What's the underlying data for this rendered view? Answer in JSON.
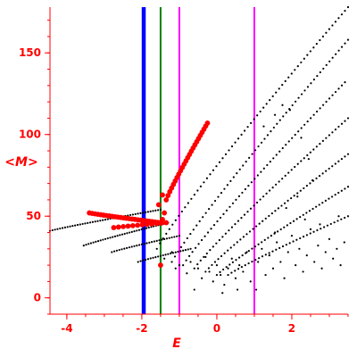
{
  "chart_data": {
    "type": "scatter",
    "xlabel": "E",
    "ylabel": "<M>",
    "xlim": [
      -4.45,
      3.5
    ],
    "ylim": [
      -10,
      178
    ],
    "x_ticks": [
      {
        "value": -4,
        "label": "-4"
      },
      {
        "value": -2,
        "label": "-2"
      },
      {
        "value": 0,
        "label": "0"
      },
      {
        "value": 2,
        "label": "2"
      }
    ],
    "y_ticks": [
      {
        "value": 0,
        "label": "0"
      },
      {
        "value": 50,
        "label": "50"
      },
      {
        "value": 100,
        "label": "100"
      },
      {
        "value": 150,
        "label": "150"
      }
    ],
    "x_minor_step": 0.5,
    "y_minor_step": 10,
    "grid": false,
    "legend": "none",
    "axis_color": "#ff0000",
    "vertical_lines": [
      {
        "x": -1.95,
        "color": "#0000ff",
        "weight": "thick"
      },
      {
        "x": -1.5,
        "color": "#008000",
        "weight": "medium"
      },
      {
        "x": -1.0,
        "color": "#ff00ff",
        "weight": "medium"
      },
      {
        "x": 1.0,
        "color": "#ff00ff",
        "weight": "medium"
      }
    ],
    "series": [
      {
        "color": "#000000",
        "marker": "small-dot",
        "bands": [
          {
            "x": [
              -4.45,
              -1.5
            ],
            "y": [
              41,
              54
            ],
            "n": 45
          },
          {
            "x": [
              -3.55,
              -1.3
            ],
            "y": [
              32,
              46
            ],
            "n": 36
          },
          {
            "x": [
              -2.8,
              -1.0
            ],
            "y": [
              28,
              38
            ],
            "n": 28
          },
          {
            "x": [
              -2.1,
              -0.7
            ],
            "y": [
              22,
              30
            ],
            "n": 22
          },
          {
            "x": [
              -1.6,
              3.5
            ],
            "y": [
              30,
              178
            ],
            "n": 62
          },
          {
            "x": [
              -1.2,
              3.5
            ],
            "y": [
              22,
              158
            ],
            "n": 58
          },
          {
            "x": [
              -0.9,
              3.5
            ],
            "y": [
              20,
              134
            ],
            "n": 54
          },
          {
            "x": [
              -0.6,
              3.5
            ],
            "y": [
              18,
              110
            ],
            "n": 50
          },
          {
            "x": [
              -0.3,
              3.5
            ],
            "y": [
              16,
              88
            ],
            "n": 46
          },
          {
            "x": [
              0.0,
              3.5
            ],
            "y": [
              14,
              68
            ],
            "n": 42
          },
          {
            "x": [
              0.3,
              3.5
            ],
            "y": [
              14,
              50
            ],
            "n": 36
          }
        ],
        "scatter": [
          [
            -1.0,
            20
          ],
          [
            -0.8,
            15
          ],
          [
            -0.7,
            22
          ],
          [
            -0.5,
            18
          ],
          [
            -0.4,
            12
          ],
          [
            -0.3,
            25
          ],
          [
            -0.2,
            16
          ],
          [
            -0.1,
            10
          ],
          [
            0.0,
            20
          ],
          [
            0.1,
            14
          ],
          [
            0.2,
            8
          ],
          [
            0.3,
            18
          ],
          [
            0.4,
            24
          ],
          [
            0.5,
            12
          ],
          [
            0.6,
            20
          ],
          [
            0.7,
            16
          ],
          [
            0.8,
            28
          ],
          [
            0.9,
            10
          ],
          [
            1.1,
            22
          ],
          [
            1.2,
            30
          ],
          [
            1.3,
            14
          ],
          [
            1.4,
            26
          ],
          [
            1.5,
            18
          ],
          [
            1.6,
            34
          ],
          [
            1.7,
            22
          ],
          [
            1.8,
            12
          ],
          [
            1.9,
            28
          ],
          [
            2.0,
            38
          ],
          [
            2.1,
            20
          ],
          [
            2.2,
            30
          ],
          [
            2.3,
            16
          ],
          [
            2.4,
            26
          ],
          [
            2.5,
            42
          ],
          [
            2.6,
            22
          ],
          [
            2.7,
            32
          ],
          [
            2.8,
            18
          ],
          [
            2.9,
            28
          ],
          [
            3.0,
            36
          ],
          [
            3.1,
            24
          ],
          [
            3.2,
            30
          ],
          [
            3.3,
            20
          ],
          [
            3.4,
            34
          ],
          [
            -0.6,
            5
          ],
          [
            0.15,
            3
          ],
          [
            0.55,
            5
          ],
          [
            -1.4,
            24
          ],
          [
            -1.2,
            28
          ],
          [
            -1.1,
            18
          ],
          [
            1.05,
            5
          ],
          [
            1.55,
            40
          ],
          [
            2.35,
            48
          ],
          [
            2.75,
            45
          ],
          [
            3.25,
            50
          ],
          [
            1.85,
            55
          ],
          [
            2.15,
            62
          ],
          [
            2.55,
            72
          ],
          [
            2.45,
            85
          ],
          [
            2.25,
            98
          ],
          [
            1.95,
            115
          ],
          [
            1.75,
            118
          ],
          [
            1.55,
            112
          ],
          [
            1.25,
            105
          ]
        ]
      },
      {
        "color": "#ff0000",
        "marker": "large-dot",
        "bands": [
          {
            "x": [
              -3.4,
              -1.5
            ],
            "y": [
              52,
              46
            ],
            "n": 26
          },
          {
            "x": [
              -2.75,
              -1.35
            ],
            "y": [
              43,
              46
            ],
            "n": 12
          },
          {
            "x": [
              -1.35,
              -0.25
            ],
            "y": [
              60,
              107
            ],
            "n": 24
          }
        ],
        "scatter": [
          [
            -1.45,
            48
          ],
          [
            -1.4,
            52
          ],
          [
            -1.5,
            20
          ],
          [
            -1.45,
            63
          ],
          [
            -1.55,
            57
          ]
        ]
      }
    ]
  }
}
